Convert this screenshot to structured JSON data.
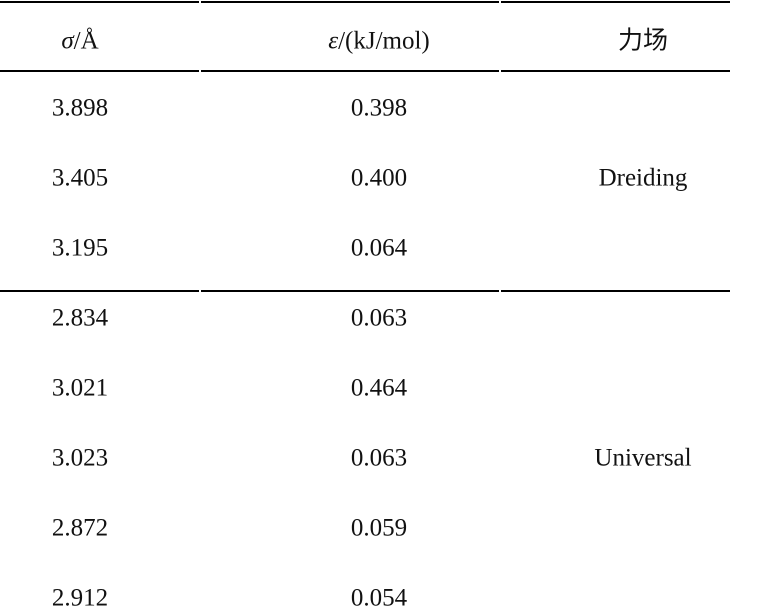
{
  "table": {
    "header": [
      {
        "symbol": "σ",
        "unit": "/Å"
      },
      {
        "symbol": "ε",
        "unit": "/(kJ/mol)"
      },
      {
        "symbol": "",
        "unit": "力场"
      }
    ],
    "groups": [
      {
        "force_field": "Dreiding",
        "rows": [
          [
            "3.898",
            "0.398"
          ],
          [
            "3.405",
            "0.400"
          ],
          [
            "3.195",
            "0.064"
          ]
        ]
      },
      {
        "force_field": "Universal",
        "rows": [
          [
            "2.834",
            "0.063"
          ],
          [
            "3.021",
            "0.464"
          ],
          [
            "3.023",
            "0.063"
          ],
          [
            "2.872",
            "0.059"
          ],
          [
            "2.912",
            "0.054"
          ]
        ]
      }
    ]
  }
}
